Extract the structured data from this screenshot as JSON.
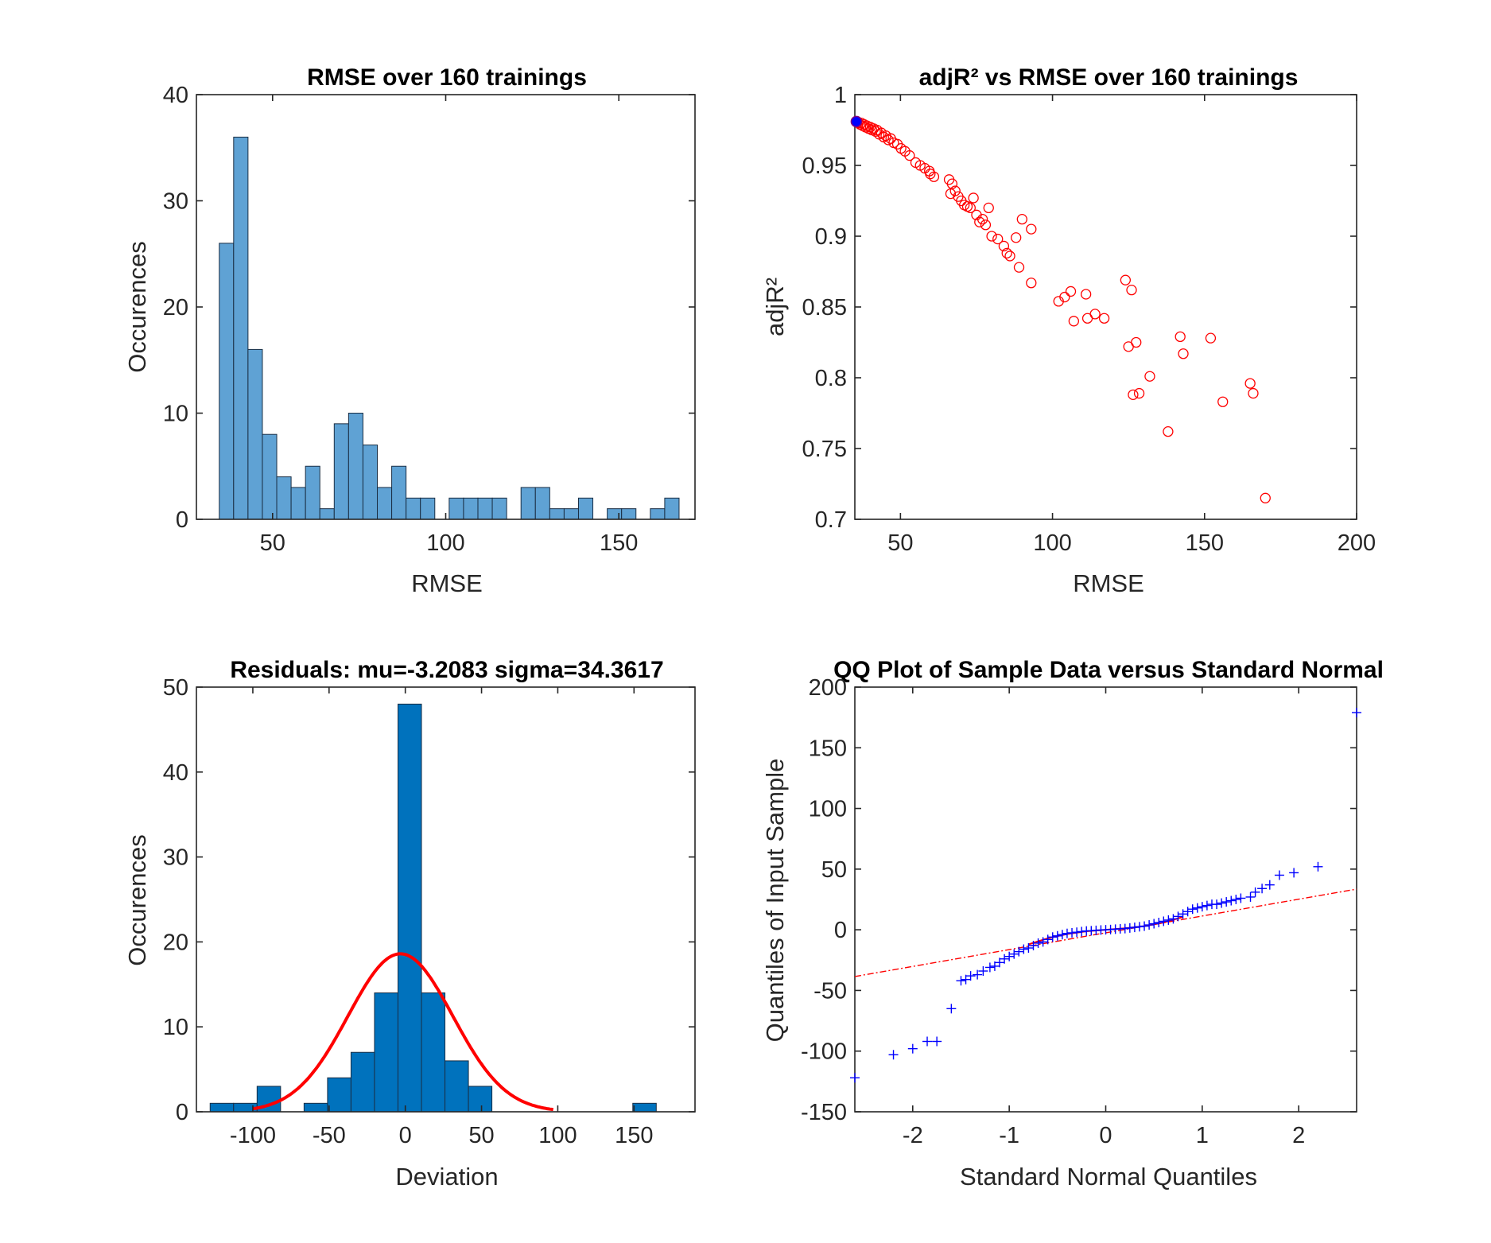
{
  "colors": {
    "hist_fill": "#5fa2d4",
    "hist2_fill": "#0072bd",
    "edge": "#1a2e44",
    "red": "#ff0000",
    "blue": "#0000ff",
    "axes": "#262626"
  },
  "chart_data": [
    {
      "id": "rmse_hist",
      "type": "bar",
      "title": "RMSE over 160 trainings",
      "xlabel": "RMSE",
      "ylabel": "Occurences",
      "xlim": [
        28,
        172
      ],
      "ylim": [
        0,
        40
      ],
      "xticks": [
        50,
        100,
        150
      ],
      "yticks": [
        0,
        10,
        20,
        30,
        40
      ],
      "bin_start": 34.6,
      "bin_width": 4.15,
      "values": [
        26,
        36,
        16,
        8,
        4,
        3,
        5,
        1,
        9,
        10,
        7,
        3,
        5,
        2,
        2,
        0,
        2,
        2,
        2,
        2,
        0,
        3,
        3,
        1,
        1,
        2,
        0,
        1,
        1,
        0,
        1,
        2
      ]
    },
    {
      "id": "adjr2_scatter",
      "type": "scatter",
      "title": "adjR² vs RMSE over 160 trainings",
      "xlabel": "RMSE",
      "ylabel": "adjR²",
      "xlim": [
        35,
        200
      ],
      "ylim": [
        0.7,
        1
      ],
      "xticks": [
        50,
        100,
        150,
        200
      ],
      "yticks": [
        0.7,
        0.75,
        0.8,
        0.85,
        0.9,
        0.95,
        1
      ],
      "ytick_labels": [
        "0.7",
        "0.75",
        "0.8",
        "0.85",
        "0.9",
        "0.95",
        "1"
      ],
      "highlight": {
        "x": 35.5,
        "y": 0.981
      },
      "points": [
        [
          35.8,
          0.981
        ],
        [
          36.2,
          0.98
        ],
        [
          36.7,
          0.979
        ],
        [
          37.1,
          0.98
        ],
        [
          37.6,
          0.978
        ],
        [
          38.0,
          0.979
        ],
        [
          38.5,
          0.977
        ],
        [
          39.0,
          0.978
        ],
        [
          39.5,
          0.976
        ],
        [
          40.1,
          0.977
        ],
        [
          40.6,
          0.975
        ],
        [
          41.2,
          0.976
        ],
        [
          41.8,
          0.974
        ],
        [
          42.3,
          0.975
        ],
        [
          43.0,
          0.972
        ],
        [
          43.7,
          0.973
        ],
        [
          44.5,
          0.97
        ],
        [
          45.2,
          0.971
        ],
        [
          46.0,
          0.968
        ],
        [
          46.8,
          0.969
        ],
        [
          47.8,
          0.966
        ],
        [
          49.0,
          0.965
        ],
        [
          50.2,
          0.962
        ],
        [
          51.5,
          0.96
        ],
        [
          53.0,
          0.957
        ],
        [
          55.0,
          0.952
        ],
        [
          56.5,
          0.95
        ],
        [
          58.0,
          0.948
        ],
        [
          59.5,
          0.946
        ],
        [
          61.0,
          0.942
        ],
        [
          59.8,
          0.944
        ],
        [
          66.0,
          0.94
        ],
        [
          67.0,
          0.937
        ],
        [
          68.0,
          0.932
        ],
        [
          66.5,
          0.93
        ],
        [
          69.0,
          0.928
        ],
        [
          70.0,
          0.925
        ],
        [
          71.0,
          0.922
        ],
        [
          72.0,
          0.921
        ],
        [
          73.0,
          0.92
        ],
        [
          74.0,
          0.927
        ],
        [
          75.0,
          0.915
        ],
        [
          76.0,
          0.91
        ],
        [
          77.0,
          0.912
        ],
        [
          78.0,
          0.908
        ],
        [
          79.0,
          0.92
        ],
        [
          80.0,
          0.9
        ],
        [
          82.0,
          0.898
        ],
        [
          84.0,
          0.893
        ],
        [
          85.0,
          0.888
        ],
        [
          86.0,
          0.886
        ],
        [
          88.0,
          0.899
        ],
        [
          89.0,
          0.878
        ],
        [
          90.0,
          0.912
        ],
        [
          93.0,
          0.905
        ],
        [
          93.0,
          0.867
        ],
        [
          102.0,
          0.854
        ],
        [
          104.0,
          0.857
        ],
        [
          106.0,
          0.861
        ],
        [
          107.0,
          0.84
        ],
        [
          111.0,
          0.859
        ],
        [
          111.5,
          0.842
        ],
        [
          114.0,
          0.845
        ],
        [
          117.0,
          0.842
        ],
        [
          124.0,
          0.869
        ],
        [
          125.0,
          0.822
        ],
        [
          126.0,
          0.862
        ],
        [
          126.5,
          0.788
        ],
        [
          127.5,
          0.825
        ],
        [
          128.5,
          0.789
        ],
        [
          132.0,
          0.801
        ],
        [
          138.0,
          0.762
        ],
        [
          142.0,
          0.829
        ],
        [
          143.0,
          0.817
        ],
        [
          152.0,
          0.828
        ],
        [
          156.0,
          0.783
        ],
        [
          165.0,
          0.796
        ],
        [
          166.0,
          0.789
        ],
        [
          170.0,
          0.715
        ]
      ]
    },
    {
      "id": "residuals_hist",
      "type": "bar",
      "title": "Residuals: mu=-3.2083 sigma=34.3617",
      "xlabel": "Deviation",
      "ylabel": "Occurences",
      "xlim": [
        -137,
        190
      ],
      "ylim": [
        0,
        50
      ],
      "xticks": [
        -100,
        -50,
        0,
        50,
        100,
        150
      ],
      "yticks": [
        0,
        10,
        20,
        30,
        40,
        50
      ],
      "bin_start": -128,
      "bin_width": 15.4,
      "values": [
        1,
        1,
        3,
        0,
        1,
        4,
        7,
        14,
        48,
        14,
        6,
        3,
        0,
        0,
        0,
        0,
        0,
        0,
        1
      ],
      "fit": {
        "mu": -3.2083,
        "sigma": 34.3617,
        "peak": 18.6,
        "range": [
          -100,
          97
        ]
      }
    },
    {
      "id": "qq_plot",
      "type": "scatter",
      "title": "QQ Plot of Sample Data versus Standard Normal",
      "xlabel": "Standard Normal Quantiles",
      "ylabel": "Quantiles of Input Sample",
      "xlim": [
        -2.6,
        2.6
      ],
      "ylim": [
        -150,
        200
      ],
      "xticks": [
        -2,
        -1,
        0,
        1,
        2
      ],
      "yticks": [
        -150,
        -100,
        -50,
        0,
        50,
        100,
        150,
        200
      ],
      "reference_line": [
        [
          -2.6,
          -38.5
        ],
        [
          2.6,
          33.5
        ]
      ],
      "fit_curve": [
        [
          -0.8,
          -12
        ],
        [
          -0.6,
          -7
        ],
        [
          -0.4,
          -3.5
        ],
        [
          -0.2,
          -1.2
        ],
        [
          0,
          0
        ],
        [
          0.2,
          1.2
        ],
        [
          0.4,
          3
        ],
        [
          0.6,
          6
        ],
        [
          0.8,
          10.5
        ]
      ],
      "points": [
        [
          -2.6,
          -122
        ],
        [
          -2.2,
          -103
        ],
        [
          -2.0,
          -98
        ],
        [
          -1.85,
          -92
        ],
        [
          -1.75,
          -92
        ],
        [
          -1.6,
          -65
        ],
        [
          -1.5,
          -42
        ],
        [
          -1.45,
          -41
        ],
        [
          -1.4,
          -38
        ],
        [
          -1.33,
          -37
        ],
        [
          -1.27,
          -34
        ],
        [
          -1.2,
          -31
        ],
        [
          -1.15,
          -30
        ],
        [
          -1.1,
          -27
        ],
        [
          -1.05,
          -24
        ],
        [
          -1.0,
          -22
        ],
        [
          -0.95,
          -20
        ],
        [
          -0.9,
          -18
        ],
        [
          -0.85,
          -16
        ],
        [
          -0.8,
          -15
        ],
        [
          -0.75,
          -13
        ],
        [
          -0.7,
          -11
        ],
        [
          -0.65,
          -10
        ],
        [
          -0.6,
          -8
        ],
        [
          -0.55,
          -6
        ],
        [
          -0.5,
          -5
        ],
        [
          -0.45,
          -4
        ],
        [
          -0.4,
          -3
        ],
        [
          -0.35,
          -2.5
        ],
        [
          -0.3,
          -2
        ],
        [
          -0.25,
          -1.5
        ],
        [
          -0.2,
          -1
        ],
        [
          -0.15,
          -0.8
        ],
        [
          -0.1,
          -0.5
        ],
        [
          -0.05,
          -0.2
        ],
        [
          0.0,
          0
        ],
        [
          0.05,
          0.2
        ],
        [
          0.1,
          0.5
        ],
        [
          0.15,
          0.8
        ],
        [
          0.2,
          1
        ],
        [
          0.25,
          1.5
        ],
        [
          0.3,
          2
        ],
        [
          0.35,
          2.5
        ],
        [
          0.4,
          3
        ],
        [
          0.45,
          4
        ],
        [
          0.5,
          5
        ],
        [
          0.55,
          6
        ],
        [
          0.6,
          7
        ],
        [
          0.65,
          8
        ],
        [
          0.7,
          9
        ],
        [
          0.75,
          11
        ],
        [
          0.8,
          13
        ],
        [
          0.85,
          15
        ],
        [
          0.9,
          17
        ],
        [
          0.95,
          18
        ],
        [
          1.0,
          19
        ],
        [
          1.05,
          20
        ],
        [
          1.1,
          21
        ],
        [
          1.15,
          21
        ],
        [
          1.2,
          22
        ],
        [
          1.25,
          23
        ],
        [
          1.3,
          24
        ],
        [
          1.35,
          25
        ],
        [
          1.4,
          26
        ],
        [
          1.5,
          27
        ],
        [
          1.55,
          31
        ],
        [
          1.62,
          34
        ],
        [
          1.7,
          37
        ],
        [
          1.8,
          45
        ],
        [
          1.95,
          47
        ],
        [
          2.2,
          52
        ],
        [
          2.6,
          179
        ]
      ]
    }
  ]
}
